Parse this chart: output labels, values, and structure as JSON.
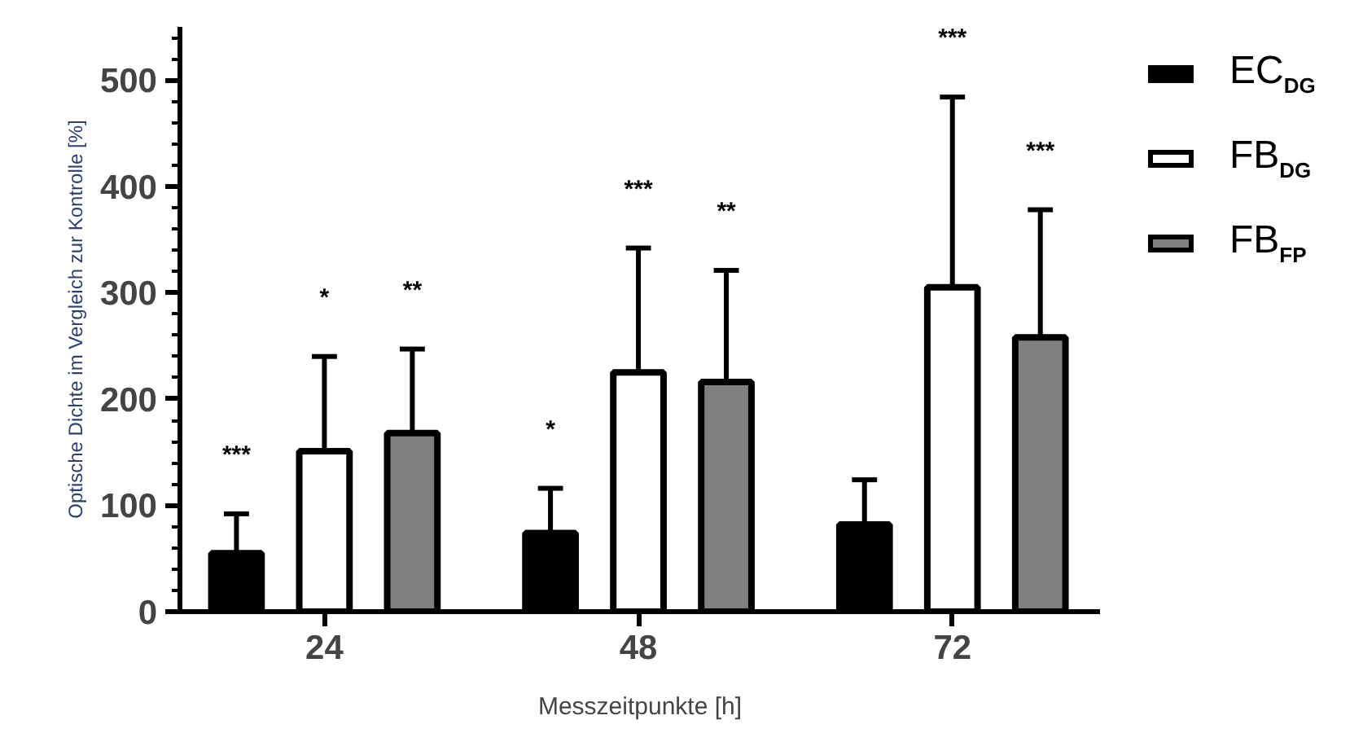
{
  "chart_data": {
    "type": "bar",
    "xlabel": "Messzeitpunkte [h]",
    "ylabel": "Optische Dichte im Vergleich zur Kontrolle [%]",
    "categories": [
      "24",
      "48",
      "72"
    ],
    "series": [
      {
        "name": "EC$_{DG}$",
        "color": "#000000",
        "values": [
          55,
          74,
          82
        ],
        "errors": [
          [
            55,
            92
          ],
          [
            74,
            116
          ],
          [
            82,
            124
          ]
        ]
      },
      {
        "name": "FB$_{DG}$",
        "color": "#ffffff",
        "values": [
          151,
          225,
          305
        ],
        "errors": [
          [
            151,
            240
          ],
          [
            225,
            342
          ],
          [
            305,
            484
          ]
        ]
      },
      {
        "name": "FB$_{FP}$",
        "color": "#808080",
        "values": [
          168,
          216,
          258
        ],
        "errors": [
          [
            168,
            247
          ],
          [
            216,
            321
          ],
          [
            258,
            378
          ]
        ]
      }
    ],
    "annotations": [
      "***",
      "*",
      "**",
      "*",
      "***",
      "**",
      "***",
      "***"
    ],
    "ylim": [
      0,
      550
    ],
    "yticks": [
      0,
      100,
      200,
      300,
      400,
      500
    ],
    "grid": false,
    "legend": "top right"
  }
}
